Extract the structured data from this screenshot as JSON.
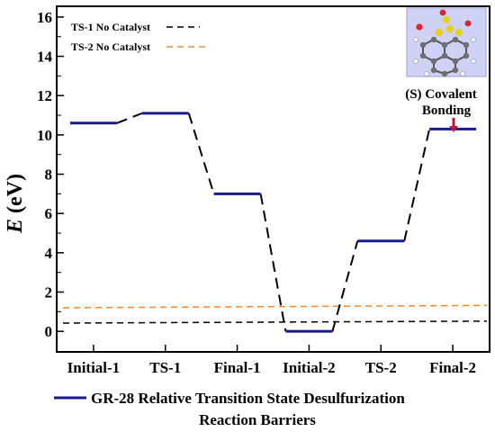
{
  "chart_data": {
    "type": "line",
    "title": "",
    "xlabel": "",
    "ylabel_main": "E",
    "ylabel_unit": " (eV)",
    "ylim": [
      -1,
      16.5
    ],
    "yticks": [
      "0",
      "2",
      "4",
      "6",
      "8",
      "10",
      "12",
      "14",
      "16"
    ],
    "categories": [
      "Initial-1",
      "TS-1",
      "Final-1",
      "Initial-2",
      "TS-2",
      "Final-2"
    ],
    "series": [
      {
        "name_line1": "GR-28 Relative Transition State Desulfurization",
        "name_line2": "Reaction Barriers",
        "color": "#1a1a8c",
        "values": [
          10.6,
          11.1,
          7.0,
          0.0,
          4.6,
          10.3
        ]
      }
    ],
    "reference_lines": [
      {
        "name": "TS-1 No Catalyst",
        "color": "#000000",
        "y_start": 0.42,
        "y_end": 0.52
      },
      {
        "name": "TS-2 No Catalyst",
        "color": "#f08a30",
        "y_start": 1.2,
        "y_end": 1.32
      }
    ],
    "annotation": {
      "line1": "(S) Covalent",
      "line2": "Bonding",
      "arrow_color": "#c0143c",
      "target_category": "Final-2"
    },
    "inset": {
      "image": "molecular-structure",
      "background": "#cfd2f5"
    },
    "grid": false,
    "legend_position": "top-left"
  }
}
